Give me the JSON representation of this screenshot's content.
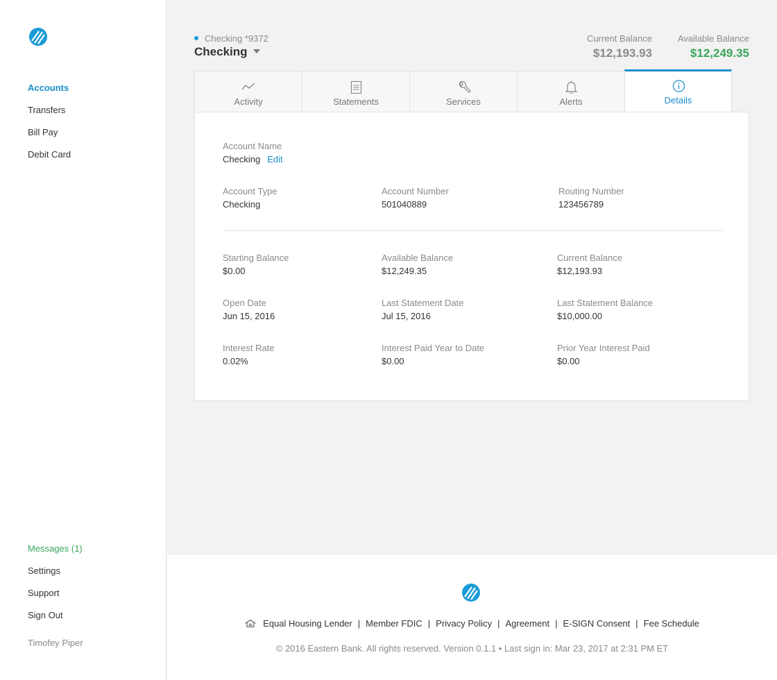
{
  "sidebar": {
    "nav": [
      {
        "label": "Accounts",
        "active": true
      },
      {
        "label": "Transfers"
      },
      {
        "label": "Bill Pay"
      },
      {
        "label": "Debit Card"
      }
    ],
    "bottom": [
      {
        "label": "Messages (1)"
      },
      {
        "label": "Settings"
      },
      {
        "label": "Support"
      },
      {
        "label": "Sign Out"
      }
    ],
    "user_name": "Timofey Piper"
  },
  "header": {
    "account_sub": "Checking *9372",
    "account_title": "Checking",
    "current_balance_label": "Current Balance",
    "current_balance": "$12,193.93",
    "available_balance_label": "Available Balance",
    "available_balance": "$12,249.35"
  },
  "tabs": [
    {
      "label": "Activity",
      "icon": "activity-icon"
    },
    {
      "label": "Statements",
      "icon": "statements-icon"
    },
    {
      "label": "Services",
      "icon": "wrench-icon"
    },
    {
      "label": "Alerts",
      "icon": "bell-icon"
    },
    {
      "label": "Details",
      "icon": "info-icon",
      "active": true
    }
  ],
  "details": {
    "account_name": {
      "label": "Account Name",
      "value": "Checking",
      "edit": "Edit"
    },
    "account_type": {
      "label": "Account Type",
      "value": "Checking"
    },
    "account_number": {
      "label": "Account Number",
      "value": "501040889"
    },
    "routing_number": {
      "label": "Routing Number",
      "value": "123456789"
    },
    "starting_balance": {
      "label": "Starting Balance",
      "value": "$0.00"
    },
    "available_balance": {
      "label": "Available Balance",
      "value": "$12,249.35"
    },
    "current_balance": {
      "label": "Current Balance",
      "value": "$12,193.93"
    },
    "open_date": {
      "label": "Open Date",
      "value": "Jun 15, 2016"
    },
    "last_statement_date": {
      "label": "Last Statement Date",
      "value": "Jul 15, 2016"
    },
    "last_statement_balance": {
      "label": "Last Statement Balance",
      "value": "$10,000.00"
    },
    "interest_rate": {
      "label": "Interest Rate",
      "value": "0.02%"
    },
    "interest_paid_ytd": {
      "label": "Interest Paid Year to Date",
      "value": "$0.00"
    },
    "prior_year_interest": {
      "label": "Prior Year Interest Paid",
      "value": "$0.00"
    }
  },
  "footer": {
    "links": [
      "Equal Housing Lender",
      "Member FDIC",
      "Privacy Policy",
      "Agreement",
      "E-SIGN Consent",
      "Fee Schedule"
    ],
    "copyright": "© 2016 Eastern Bank. All rights reserved. Version 0.1.1 • Last sign in: Mar 23, 2017 at 2:31 PM ET"
  },
  "colors": {
    "accent": "#1a8fc7",
    "positive": "#3aa65a",
    "muted": "#8a8a8a"
  }
}
